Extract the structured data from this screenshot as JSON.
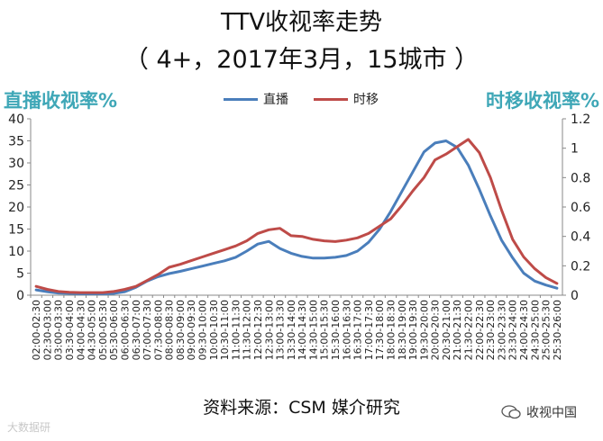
{
  "header": {
    "title": "TTV收视率走势",
    "subtitle": "（ 4+，2017年3月，15城市 ）"
  },
  "axes": {
    "left_title": "直播收视率%",
    "right_title": "时移收视率%"
  },
  "footer": {
    "source": "资料来源：CSM 媒介研究",
    "wechat_label": "收视中国",
    "watermark": "大数据研"
  },
  "colors": {
    "live": "#4a7ebb",
    "timeshift": "#be4b48",
    "axis_title": "#3fa7b7"
  },
  "chart_data": {
    "type": "line",
    "categories": [
      "02:00-02:30",
      "02:30-03:00",
      "03:00-03:30",
      "03:30-04:00",
      "04:00-04:30",
      "04:30-05:00",
      "05:00-05:30",
      "05:30-06:00",
      "06:00-06:30",
      "06:30-07:00",
      "07:00-07:30",
      "07:30-08:00",
      "08:00-08:30",
      "08:30-09:00",
      "09:00-09:30",
      "09:30-10:00",
      "10:00-10:30",
      "10:30-11:00",
      "11:00-11:30",
      "11:30-12:00",
      "12:00-12:30",
      "12:30-13:00",
      "13:00-13:30",
      "13:30-14:00",
      "14:00-14:30",
      "14:30-15:00",
      "15:00-15:30",
      "15:30-16:00",
      "16:00-16:30",
      "16:30-17:00",
      "17:00-17:30",
      "17:30-18:00",
      "18:00-18:30",
      "18:30-19:00",
      "19:00-19:30",
      "19:30-20:00",
      "20:00-20:30",
      "20:30-21:00",
      "21:00-21:30",
      "21:30-22:00",
      "22:00-22:30",
      "22:30-23:00",
      "23:00-23:30",
      "23:30-24:00",
      "24:00-24:30",
      "24:30-25:00",
      "25:00-25:30",
      "25:30-26:00"
    ],
    "series": [
      {
        "name": "直播",
        "axis": "left",
        "color": "#4a7ebb",
        "values": [
          1.2,
          0.8,
          0.5,
          0.4,
          0.3,
          0.3,
          0.3,
          0.4,
          0.8,
          1.8,
          3.2,
          4.2,
          4.9,
          5.4,
          6.0,
          6.6,
          7.2,
          7.8,
          8.6,
          10.0,
          11.6,
          12.2,
          10.6,
          9.5,
          8.8,
          8.4,
          8.4,
          8.6,
          9.0,
          10.0,
          12.0,
          15.0,
          19.0,
          23.5,
          28.0,
          32.5,
          34.5,
          35.0,
          33.5,
          29.5,
          24.0,
          18.0,
          12.5,
          8.5,
          5.0,
          3.2,
          2.3,
          1.6
        ]
      },
      {
        "name": "时移",
        "axis": "right",
        "color": "#be4b48",
        "values": [
          0.06,
          0.04,
          0.025,
          0.02,
          0.018,
          0.018,
          0.018,
          0.025,
          0.04,
          0.06,
          0.1,
          0.14,
          0.19,
          0.21,
          0.235,
          0.26,
          0.285,
          0.31,
          0.335,
          0.37,
          0.42,
          0.445,
          0.455,
          0.405,
          0.4,
          0.38,
          0.37,
          0.365,
          0.375,
          0.39,
          0.42,
          0.47,
          0.52,
          0.61,
          0.71,
          0.8,
          0.92,
          0.96,
          1.01,
          1.06,
          0.97,
          0.8,
          0.58,
          0.38,
          0.26,
          0.18,
          0.12,
          0.08
        ]
      }
    ],
    "ylim": [
      0,
      40
    ],
    "y_ticks": [
      0,
      5,
      10,
      15,
      20,
      25,
      30,
      35,
      40
    ],
    "y2lim": [
      0,
      1.2
    ],
    "y2_ticks": [
      0,
      0.2,
      0.4,
      0.6,
      0.8,
      1,
      1.2
    ],
    "legend_position": "top-center",
    "grid": false
  }
}
